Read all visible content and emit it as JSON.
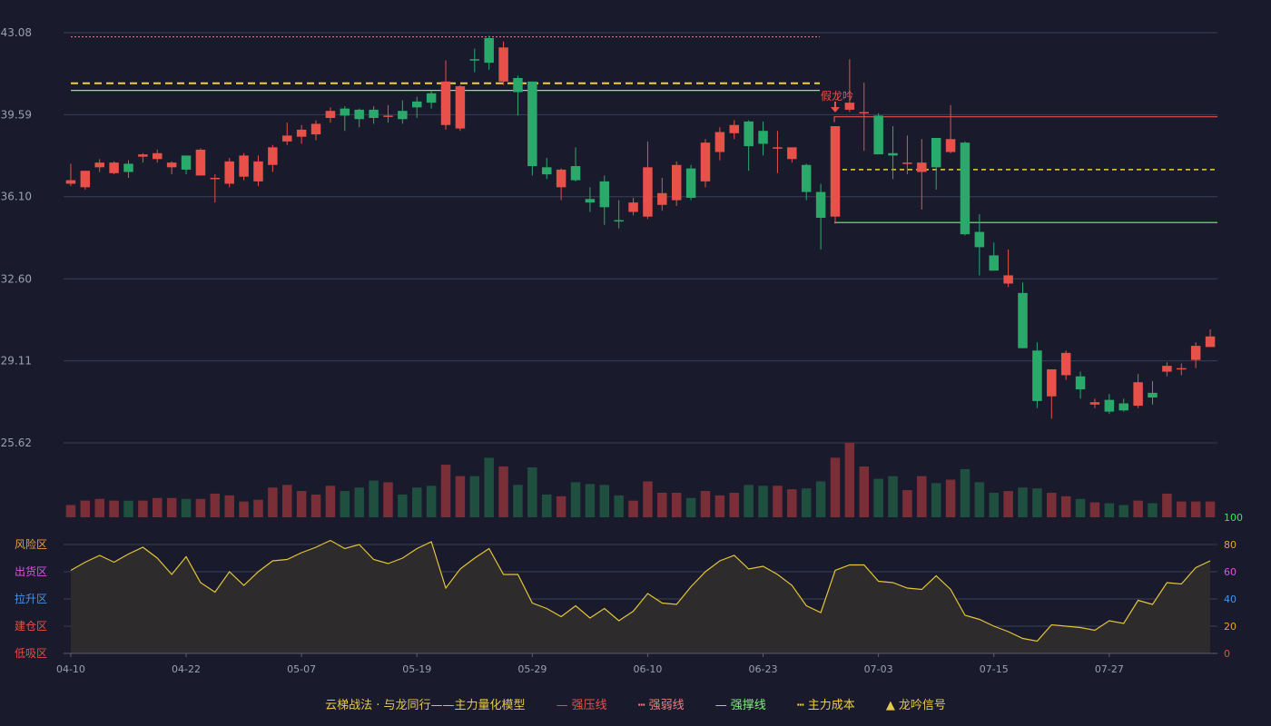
{
  "chart_data": {
    "type": "candlestick",
    "price_axis": {
      "ticks": [
        "43.08",
        "39.59",
        "36.10",
        "32.60",
        "29.11",
        "25.62"
      ],
      "ylim": [
        25.62,
        43.08
      ]
    },
    "dates": [
      "04-10",
      "04-22",
      "05-07",
      "05-19",
      "05-29",
      "06-10",
      "06-23",
      "07-03",
      "07-15",
      "07-27"
    ],
    "candles": [
      [
        36.65,
        36.8,
        37.5,
        36.55
      ],
      [
        36.5,
        37.2,
        37.2,
        36.4
      ],
      [
        37.35,
        37.55,
        37.7,
        37.15
      ],
      [
        37.1,
        37.55,
        37.6,
        37.05
      ],
      [
        37.5,
        37.15,
        37.65,
        36.9
      ],
      [
        37.8,
        37.9,
        37.95,
        37.55
      ],
      [
        37.7,
        37.95,
        38.1,
        37.55
      ],
      [
        37.35,
        37.55,
        37.6,
        37.05
      ],
      [
        37.85,
        37.25,
        37.85,
        37.05
      ],
      [
        37.0,
        38.1,
        38.15,
        37.0
      ],
      [
        36.85,
        36.9,
        37.05,
        35.85
      ],
      [
        36.65,
        37.6,
        37.75,
        36.5
      ],
      [
        36.95,
        37.85,
        37.95,
        36.8
      ],
      [
        36.75,
        37.6,
        37.85,
        36.55
      ],
      [
        37.45,
        38.2,
        38.3,
        37.15
      ],
      [
        38.45,
        38.7,
        39.25,
        38.3
      ],
      [
        38.65,
        38.95,
        39.15,
        38.35
      ],
      [
        38.75,
        39.2,
        39.35,
        38.5
      ],
      [
        39.45,
        39.75,
        39.9,
        39.25
      ],
      [
        39.85,
        39.55,
        39.95,
        38.9
      ],
      [
        39.8,
        39.4,
        39.85,
        39.05
      ],
      [
        39.8,
        39.45,
        39.95,
        39.2
      ],
      [
        39.55,
        39.55,
        40.0,
        39.25
      ],
      [
        39.75,
        39.4,
        40.2,
        39.2
      ],
      [
        40.15,
        39.9,
        40.35,
        39.45
      ],
      [
        40.5,
        40.1,
        40.6,
        39.85
      ],
      [
        39.15,
        41.0,
        41.9,
        38.95
      ],
      [
        39.0,
        40.8,
        40.85,
        38.9
      ],
      [
        41.95,
        41.9,
        42.4,
        41.4
      ],
      [
        42.85,
        41.8,
        42.95,
        41.5
      ],
      [
        41.0,
        42.45,
        42.7,
        40.85
      ],
      [
        41.15,
        40.55,
        41.25,
        39.55
      ],
      [
        41.0,
        37.4,
        41.0,
        37.0
      ],
      [
        37.35,
        37.05,
        37.75,
        36.85
      ],
      [
        36.5,
        37.25,
        37.3,
        35.95
      ],
      [
        37.4,
        36.8,
        38.2,
        36.75
      ],
      [
        36.0,
        35.85,
        36.5,
        35.45
      ],
      [
        36.75,
        35.65,
        37.0,
        34.9
      ],
      [
        35.1,
        35.05,
        35.95,
        34.75
      ],
      [
        35.45,
        35.85,
        36.05,
        35.3
      ],
      [
        35.25,
        37.35,
        38.45,
        35.15
      ],
      [
        35.75,
        36.25,
        36.9,
        35.5
      ],
      [
        35.95,
        37.45,
        37.6,
        35.7
      ],
      [
        37.3,
        36.05,
        37.45,
        35.95
      ],
      [
        36.75,
        38.4,
        38.55,
        36.5
      ],
      [
        38.0,
        38.85,
        39.05,
        37.65
      ],
      [
        38.8,
        39.15,
        39.35,
        38.55
      ],
      [
        39.3,
        38.25,
        39.35,
        37.2
      ],
      [
        38.9,
        38.35,
        39.3,
        37.85
      ],
      [
        38.15,
        38.2,
        38.9,
        37.1
      ],
      [
        37.7,
        38.2,
        38.15,
        37.55
      ],
      [
        37.45,
        36.3,
        37.5,
        35.95
      ],
      [
        36.3,
        35.2,
        36.65,
        33.85
      ],
      [
        35.25,
        39.1,
        39.1,
        34.95
      ],
      [
        39.8,
        40.1,
        41.95,
        39.7
      ],
      [
        39.65,
        39.7,
        40.95,
        38.05
      ],
      [
        39.55,
        37.9,
        39.65,
        37.9
      ],
      [
        37.95,
        37.85,
        39.1,
        36.85
      ],
      [
        37.55,
        37.55,
        38.7,
        37.05
      ],
      [
        37.15,
        37.55,
        38.55,
        35.55
      ],
      [
        38.6,
        37.35,
        38.6,
        36.4
      ],
      [
        38.0,
        38.55,
        40.0,
        37.95
      ],
      [
        38.4,
        34.5,
        38.45,
        34.45
      ],
      [
        34.6,
        33.95,
        35.35,
        32.75
      ],
      [
        33.6,
        32.95,
        34.15,
        33.05
      ],
      [
        32.4,
        32.75,
        33.85,
        32.25
      ],
      [
        32.0,
        29.65,
        32.45,
        29.65
      ],
      [
        29.55,
        27.4,
        29.9,
        27.1
      ],
      [
        27.6,
        28.75,
        28.75,
        26.65
      ],
      [
        28.5,
        29.45,
        29.55,
        28.3
      ],
      [
        28.45,
        27.9,
        28.65,
        27.5
      ],
      [
        27.25,
        27.35,
        27.5,
        27.1
      ],
      [
        27.45,
        26.95,
        27.7,
        26.85
      ],
      [
        27.3,
        27.0,
        27.5,
        26.95
      ],
      [
        27.2,
        28.2,
        28.55,
        27.1
      ],
      [
        27.75,
        27.55,
        28.25,
        27.25
      ],
      [
        28.65,
        28.9,
        29.05,
        28.45
      ],
      [
        28.75,
        28.8,
        29.0,
        28.5
      ],
      [
        29.15,
        29.75,
        29.9,
        28.8
      ],
      [
        29.7,
        30.15,
        30.45,
        29.75
      ]
    ],
    "volume": [
      0.14,
      0.19,
      0.21,
      0.19,
      0.19,
      0.19,
      0.22,
      0.22,
      0.21,
      0.21,
      0.27,
      0.25,
      0.18,
      0.2,
      0.34,
      0.37,
      0.3,
      0.26,
      0.36,
      0.3,
      0.34,
      0.42,
      0.4,
      0.26,
      0.34,
      0.36,
      0.6,
      0.47,
      0.47,
      0.68,
      0.58,
      0.37,
      0.57,
      0.26,
      0.24,
      0.4,
      0.38,
      0.37,
      0.25,
      0.19,
      0.41,
      0.28,
      0.28,
      0.22,
      0.3,
      0.25,
      0.28,
      0.37,
      0.36,
      0.36,
      0.32,
      0.33,
      0.41,
      0.68,
      0.85,
      0.58,
      0.44,
      0.47,
      0.31,
      0.47,
      0.39,
      0.43,
      0.55,
      0.4,
      0.28,
      0.3,
      0.34,
      0.33,
      0.28,
      0.24,
      0.21,
      0.17,
      0.16,
      0.14,
      0.19,
      0.16,
      0.27,
      0.18,
      0.18,
      0.18
    ],
    "indicator": {
      "ylim": [
        0,
        100
      ],
      "ticks": [
        "100",
        "80",
        "60",
        "40",
        "20",
        "0"
      ],
      "zones": [
        "风险区",
        "出货区",
        "拉升区",
        "建仓区",
        "低吸区"
      ],
      "values": [
        61,
        67,
        72,
        67,
        73,
        78,
        70,
        58,
        71,
        52,
        45,
        60,
        50,
        60,
        68,
        69,
        74,
        78,
        83,
        77,
        80,
        69,
        66,
        70,
        77,
        82,
        48,
        62,
        70,
        77,
        58,
        58,
        37,
        33,
        27,
        35,
        26,
        33,
        24,
        31,
        44,
        37,
        36,
        49,
        60,
        68,
        72,
        62,
        64,
        58,
        50,
        35,
        30,
        61,
        65,
        65,
        53,
        52,
        48,
        47,
        57,
        47,
        28,
        25,
        20,
        16,
        11,
        9,
        21,
        20,
        19,
        17,
        24,
        22,
        39,
        36,
        52,
        51,
        63,
        68
      ]
    },
    "lines": {
      "strong_resistance": {
        "label": "强压线",
        "value": 39.5,
        "color": "#e8504a"
      },
      "weak_line": {
        "label": "强弱线",
        "value": 42.9,
        "color": "#f07f7f"
      },
      "support": {
        "label": "强撑线",
        "value": 40.7,
        "value2": 35.0,
        "color": "#7ef07a"
      },
      "main_cost": {
        "label": "主力成本",
        "value": 40.85,
        "value2": 37.25,
        "color": "#f2d12e"
      }
    },
    "signal": {
      "label": "假龙吟"
    },
    "legend_title": "云梯战法 · 与龙同行——主力量化模型",
    "legend_signal": "龙吟信号",
    "colors": {
      "up": "#e8504a",
      "down": "#2aaa6a",
      "up_vol": "#7a2f38",
      "down_vol": "#1f4f3e",
      "indicator": "#e3c43a"
    }
  }
}
